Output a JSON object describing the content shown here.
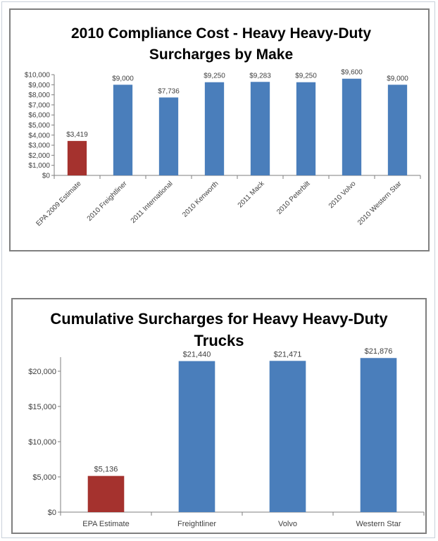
{
  "colors": {
    "series": "#4a7ebb",
    "highlight": "#a5322e",
    "axis": "#7f7f7f",
    "grid": "#d9d9d9"
  },
  "chart_data": [
    {
      "type": "bar",
      "title_lines": [
        "2010 Compliance Cost - Heavy Heavy-Duty",
        "Surcharges by Make"
      ],
      "categories": [
        "EPA 2009 Estimate",
        "2010 Freightliner",
        "2011 International",
        "2010 Kenworth",
        "2011 Mack",
        "2010 Peterbilt",
        "2010 Volvo",
        "2010 Western Star"
      ],
      "values": [
        3419,
        9000,
        7736,
        9250,
        9283,
        9250,
        9600,
        9000
      ],
      "data_labels": [
        "$3,419",
        "$9,000",
        "$7,736",
        "$9,250",
        "$9,283",
        "$9,250",
        "$9,600",
        "$9,000"
      ],
      "highlight_index": 0,
      "ylim": [
        0,
        10000
      ],
      "yticks": [
        0,
        1000,
        2000,
        3000,
        4000,
        5000,
        6000,
        7000,
        8000,
        9000,
        10000
      ],
      "ytick_labels": [
        "$0",
        "$1,000",
        "$2,000",
        "$3,000",
        "$4,000",
        "$5,000",
        "$6,000",
        "$7,000",
        "$8,000",
        "$9,000",
        "$10,000"
      ],
      "xlabel": "",
      "ylabel": "",
      "grid": false,
      "legend": "none"
    },
    {
      "type": "bar",
      "title_lines": [
        "Cumulative Surcharges for Heavy Heavy-Duty",
        "Trucks"
      ],
      "categories": [
        "EPA Estimate",
        "Freightliner",
        "Volvo",
        "Western Star"
      ],
      "values": [
        5136,
        21440,
        21471,
        21876
      ],
      "data_labels": [
        "$5,136",
        "$21,440",
        "$21,471",
        "$21,876"
      ],
      "highlight_index": 0,
      "ylim": [
        0,
        22000
      ],
      "yticks": [
        0,
        5000,
        10000,
        15000,
        20000
      ],
      "ytick_labels": [
        "$0",
        "$5,000",
        "$10,000",
        "$15,000",
        "$20,000"
      ],
      "xlabel": "",
      "ylabel": "",
      "grid": false,
      "legend": "none"
    }
  ]
}
